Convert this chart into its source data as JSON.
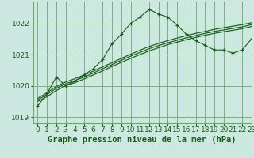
{
  "title": "Graphe pression niveau de la mer (hPa)",
  "background_color": "#cce8e0",
  "plot_bg_color": "#cce8e0",
  "grid_color": "#6aaa6a",
  "line_color": "#1a5c1a",
  "xlim": [
    -0.5,
    23
  ],
  "ylim": [
    1018.8,
    1022.7
  ],
  "yticks": [
    1019,
    1020,
    1021,
    1022
  ],
  "xticks": [
    0,
    1,
    2,
    3,
    4,
    5,
    6,
    7,
    8,
    9,
    10,
    11,
    12,
    13,
    14,
    15,
    16,
    17,
    18,
    19,
    20,
    21,
    22,
    23
  ],
  "series": [
    {
      "x": [
        0,
        1,
        2,
        3,
        4,
        5,
        6,
        7,
        8,
        9,
        10,
        11,
        12,
        13,
        14,
        15,
        16,
        17,
        18,
        19,
        20,
        21,
        22,
        23
      ],
      "y": [
        1019.35,
        1019.75,
        1020.28,
        1020.0,
        1020.15,
        1020.35,
        1020.55,
        1020.85,
        1021.35,
        1021.65,
        1022.0,
        1022.2,
        1022.45,
        1022.3,
        1022.2,
        1021.95,
        1021.65,
        1021.45,
        1021.3,
        1021.15,
        1021.15,
        1021.05,
        1021.15,
        1021.5
      ],
      "marker": "+"
    },
    {
      "x": [
        0,
        1,
        2,
        3,
        4,
        5,
        6,
        7,
        8,
        9,
        10,
        11,
        12,
        13,
        14,
        15,
        16,
        17,
        18,
        19,
        20,
        21,
        22,
        23
      ],
      "y": [
        1019.5,
        1019.65,
        1019.85,
        1020.0,
        1020.1,
        1020.22,
        1020.35,
        1020.48,
        1020.62,
        1020.75,
        1020.88,
        1021.0,
        1021.12,
        1021.22,
        1021.32,
        1021.4,
        1021.48,
        1021.55,
        1021.62,
        1021.68,
        1021.73,
        1021.78,
        1021.83,
        1021.9
      ],
      "marker": null
    },
    {
      "x": [
        0,
        1,
        2,
        3,
        4,
        5,
        6,
        7,
        8,
        9,
        10,
        11,
        12,
        13,
        14,
        15,
        16,
        17,
        18,
        19,
        20,
        21,
        22,
        23
      ],
      "y": [
        1019.55,
        1019.72,
        1019.92,
        1020.06,
        1020.17,
        1020.28,
        1020.41,
        1020.55,
        1020.68,
        1020.82,
        1020.95,
        1021.07,
        1021.19,
        1021.29,
        1021.38,
        1021.46,
        1021.54,
        1021.61,
        1021.68,
        1021.74,
        1021.79,
        1021.84,
        1021.89,
        1021.96
      ],
      "marker": null
    },
    {
      "x": [
        0,
        1,
        2,
        3,
        4,
        5,
        6,
        7,
        8,
        9,
        10,
        11,
        12,
        13,
        14,
        15,
        16,
        17,
        18,
        19,
        20,
        21,
        22,
        23
      ],
      "y": [
        1019.6,
        1019.78,
        1019.98,
        1020.12,
        1020.23,
        1020.35,
        1020.47,
        1020.61,
        1020.74,
        1020.88,
        1021.01,
        1021.14,
        1021.26,
        1021.36,
        1021.45,
        1021.53,
        1021.61,
        1021.68,
        1021.74,
        1021.81,
        1021.86,
        1021.91,
        1021.96,
        1022.02
      ],
      "marker": null
    }
  ],
  "tick_fontsize": 6.5,
  "title_fontsize": 7.5
}
